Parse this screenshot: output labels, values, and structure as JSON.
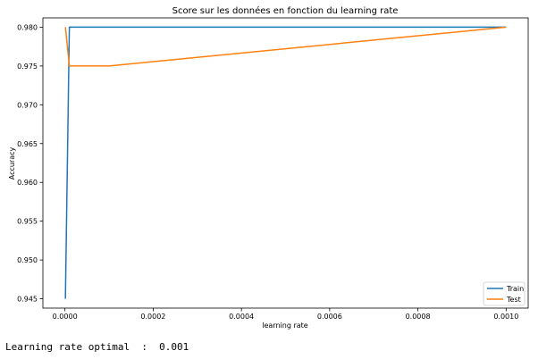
{
  "chart_data": {
    "type": "line",
    "title": "Score sur les données en fonction du learning rate",
    "xlabel": "learning rate",
    "ylabel": "Accuracy",
    "xlim": [
      -5e-05,
      0.00105
    ],
    "ylim": [
      0.9438,
      0.9812
    ],
    "xticks": [
      0.0,
      0.0002,
      0.0004,
      0.0006,
      0.0008,
      0.001
    ],
    "xtick_labels": [
      "0.0000",
      "0.0002",
      "0.0004",
      "0.0006",
      "0.0008",
      "0.0010"
    ],
    "yticks": [
      0.945,
      0.95,
      0.955,
      0.96,
      0.965,
      0.97,
      0.975,
      0.98
    ],
    "ytick_labels": [
      "0.945",
      "0.950",
      "0.955",
      "0.960",
      "0.965",
      "0.970",
      "0.975",
      "0.980"
    ],
    "grid": false,
    "legend_position": "lower-right",
    "series": [
      {
        "name": "Train",
        "color": "#1f77b4",
        "x": [
          1e-06,
          1e-05,
          0.0001,
          0.001
        ],
        "y": [
          0.945,
          0.98,
          0.98,
          0.98
        ]
      },
      {
        "name": "Test",
        "color": "#ff7f0e",
        "x": [
          1e-06,
          1e-05,
          0.0001,
          0.001
        ],
        "y": [
          0.98,
          0.975,
          0.975,
          0.98
        ]
      }
    ]
  },
  "output": {
    "text": "Learning rate optimal  :  0.001"
  }
}
